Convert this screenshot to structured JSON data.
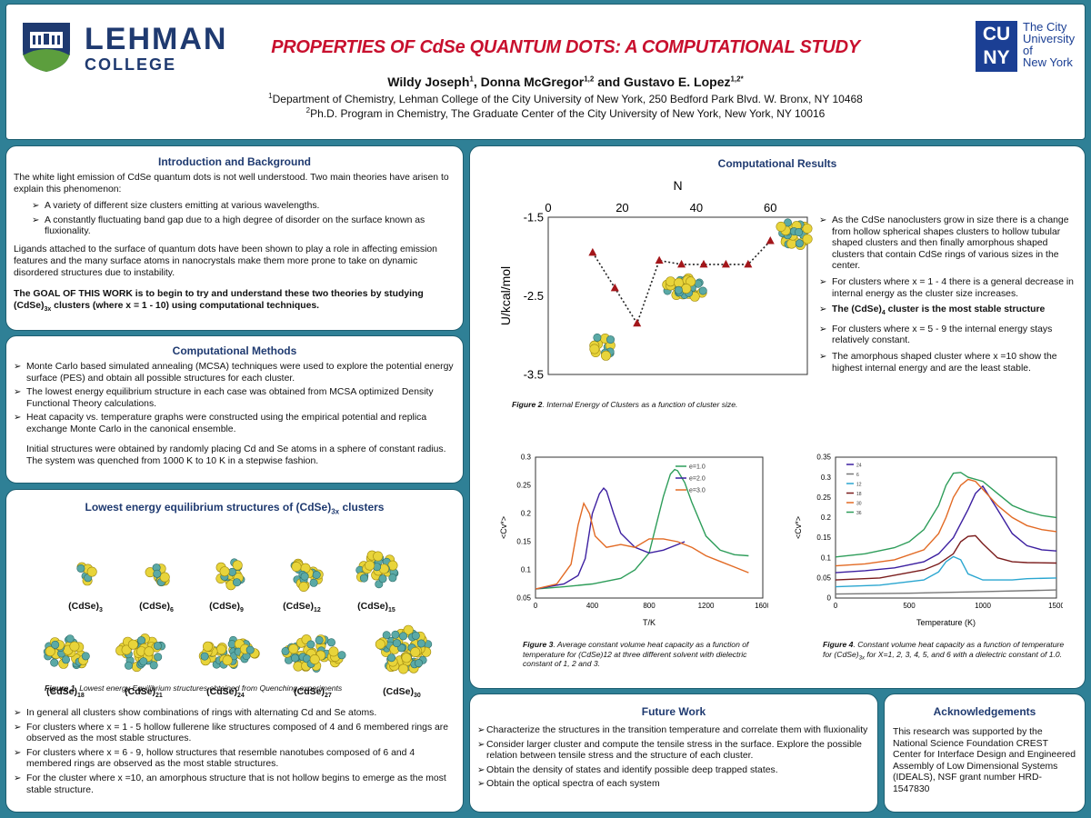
{
  "header": {
    "logo_left": {
      "name": "LEHMAN",
      "sub": "COLLEGE"
    },
    "title": "PROPERTIES OF CdSe QUANTUM DOTS: A COMPUTATIONAL STUDY",
    "authors": [
      {
        "name": "Wildy Joseph",
        "sup": "1"
      },
      {
        "name": "Donna McGregor",
        "sup": "1,2"
      },
      {
        "name": "Gustavo E. Lopez",
        "sup": "1,2*"
      }
    ],
    "aff1_sup": "1",
    "aff1": "Department of Chemistry, Lehman College of the City University of New York, 250 Bedford Park Blvd. W. Bronx, NY 10468",
    "aff2_sup": "2",
    "aff2": "Ph.D. Program in Chemistry, The Graduate Center of the City University of New York, New York, NY 10016",
    "logo_right": {
      "mark_top": "CU",
      "mark_bottom": "NY",
      "line1": "The City",
      "line2": "University",
      "line3": "of",
      "line4": "New York"
    }
  },
  "intro": {
    "heading": "Introduction and Background",
    "p1": "The white light emission of CdSe quantum dots is not well understood. Two main theories have arisen to explain this phenomenon:",
    "bullets": [
      "A variety of different size clusters emitting at various wavelengths.",
      "A constantly fluctuating band gap due to a high degree of disorder on the surface known as fluxionality."
    ],
    "p2": "Ligands attached to the surface of quantum dots have been shown to play a role in affecting emission features and the many surface atoms in nanocrystals make them more prone to take on dynamic disordered structures due to instability.",
    "goal_a": "The GOAL OF THIS WORK is to begin to try and understand these two theories by studying (CdSe)",
    "goal_sub": "3x",
    "goal_b": " clusters (where x = 1 - 10) using computational techniques."
  },
  "methods": {
    "heading": "Computational Methods",
    "bullets": [
      "Monte Carlo based simulated annealing (MCSA) techniques were used to explore the potential energy surface (PES) and obtain all possible structures for each cluster.",
      "The lowest energy equilibrium structure in each case was obtained from MCSA optimized Density Functional Theory calculations.",
      "Heat capacity vs. temperature graphs were constructed using the empirical potential and replica exchange Monte Carlo in the canonical ensemble."
    ],
    "p": "Initial structures were obtained by randomly placing Cd and Se atoms in a sphere of constant radius. The system was quenched from 1000 K to 10 K in a stepwise fashion."
  },
  "structures": {
    "heading_a": "Lowest energy equilibrium structures of  (CdSe)",
    "heading_sub": "3x",
    "heading_b": " clusters",
    "labels": [
      {
        "base": "(CdSe)",
        "sub": "3"
      },
      {
        "base": "(CdSe)",
        "sub": "6"
      },
      {
        "base": "(CdSe)",
        "sub": "9"
      },
      {
        "base": "(CdSe)",
        "sub": "12"
      },
      {
        "base": "(CdSe)",
        "sub": "15"
      },
      {
        "base": "(CdSe)",
        "sub": "18"
      },
      {
        "base": "(CdSe)",
        "sub": "21"
      },
      {
        "base": "(CdSe)",
        "sub": "24"
      },
      {
        "base": "(CdSe)",
        "sub": "27"
      },
      {
        "base": "(CdSe)",
        "sub": "30"
      }
    ],
    "caption_bold": "Figure 1",
    "caption": ". Lowest energy Equilibrium structures obtained from Quenching experiments",
    "bullets": [
      "In general all clusters show combinations of rings with alternating Cd and Se atoms.",
      "For clusters where x = 1 - 5 hollow fullerene like structures composed of 4 and 6 membered rings are observed as the most stable structures.",
      "For clusters where x = 6 - 9, hollow structures that resemble nanotubes composed of 6 and 4 membered rings are observed as the most stable structures.",
      "For the cluster where x =10, an amorphous structure that is not hollow begins to emerge as the most stable structure."
    ]
  },
  "results": {
    "heading": "Computational Results",
    "fig2_caption_bold": "Figure 2",
    "fig2_caption": ". Internal Energy of Clusters as a function of cluster size.",
    "bullets": [
      "As the CdSe nanoclusters grow in size there is a change from  hollow spherical shapes clusters to hollow tubular shaped clusters and then finally amorphous shaped clusters that contain CdSe rings of various sizes in the center.",
      "For clusters where x = 1 - 4 there is a general decrease in internal energy as the cluster size increases.",
      "For clusters where x = 5 - 9 the internal energy stays relatively constant.",
      "The amorphous shaped cluster where x =10 show the highest internal energy and are the least stable."
    ],
    "bold_a": "The (CdSe)",
    "bold_sub": "4",
    "bold_b": " cluster is the most stable structure",
    "fig3_caption_bold": "Figure 3",
    "fig3_caption": ". Average constant volume heat capacity as a function of temperature for (CdSe)12 at three different solvent with dielectric constant of 1, 2 and 3.",
    "fig4_caption_bold": "Figure 4",
    "fig4_caption_a": ". Constant volume heat capacity as a function of temperature for (CdSe)",
    "fig4_caption_sub": "3x",
    "fig4_caption_b": " for X=1, 2, 3, 4, 5, and 6 with a dielectric constant of 1.0."
  },
  "future": {
    "heading": "Future Work",
    "bullets": [
      "Characterize the structures in the transition temperature and correlate them with fluxionality",
      "Consider larger cluster and compute the tensile stress in the surface.  Explore the possible relation between tensile stress and the structure of each cluster.",
      "Obtain the density of states and identify possible deep trapped states.",
      "Obtain the optical spectra of each system"
    ]
  },
  "ack": {
    "heading": "Acknowledgements",
    "text": "This research was supported by the National Science Foundation CREST Center for Interface Design and Engineered Assembly of Low Dimensional Systems (IDEALS), NSF grant number HRD-1547830"
  },
  "colors": {
    "accent": "#1f3a70",
    "title_red": "#c8102e",
    "background": "#2f8096",
    "lehman_blue": "#1f3a70",
    "lehman_green": "#5c9e3d",
    "cuny_blue": "#1b3f94",
    "marker": "#a3161a"
  },
  "chart_data": [
    {
      "type": "scatter",
      "xlabel": "N",
      "ylabel": "U/kcal/mol",
      "xlim": [
        0,
        70
      ],
      "ylim": [
        -3.5,
        -1.5
      ],
      "x_ticks": [
        "0",
        "20",
        "40",
        "60"
      ],
      "y_ticks": [
        "-1.5",
        "-2.5",
        "-3.5"
      ],
      "x": [
        12,
        18,
        24,
        30,
        36,
        42,
        48,
        54,
        60
      ],
      "y": [
        -1.95,
        -2.4,
        -2.85,
        -2.05,
        -2.1,
        -2.1,
        -2.1,
        -2.1,
        -1.8
      ],
      "line": "dotted",
      "marker": "triangle"
    },
    {
      "type": "line",
      "xlabel": "T/K",
      "ylabel": "<Cv*>",
      "xlim": [
        0,
        1600
      ],
      "ylim": [
        0.05,
        0.3
      ],
      "x_ticks": [
        "0",
        "400",
        "800",
        "1200",
        "1600"
      ],
      "y_ticks": [
        "0.05",
        "0.1",
        "0.15",
        "0.2",
        "0.25",
        "0.3"
      ],
      "legend_position": "top-right",
      "series": [
        {
          "name": "e=1.0",
          "color": "#2e9d5a",
          "x": [
            0,
            200,
            400,
            600,
            700,
            800,
            850,
            900,
            950,
            980,
            1000,
            1050,
            1100,
            1200,
            1300,
            1400,
            1500
          ],
          "y": [
            0.066,
            0.07,
            0.075,
            0.085,
            0.1,
            0.13,
            0.18,
            0.23,
            0.27,
            0.278,
            0.276,
            0.255,
            0.22,
            0.16,
            0.135,
            0.127,
            0.125
          ]
        },
        {
          "name": "e=2.0",
          "color": "#3c1fa0",
          "x": [
            0,
            200,
            300,
            350,
            400,
            450,
            480,
            500,
            550,
            600,
            700,
            800,
            900,
            1000,
            1050
          ],
          "y": [
            0.066,
            0.075,
            0.09,
            0.12,
            0.2,
            0.235,
            0.245,
            0.24,
            0.2,
            0.165,
            0.14,
            0.13,
            0.135,
            0.145,
            0.15
          ]
        },
        {
          "name": "e=3.0",
          "color": "#e26a24",
          "x": [
            0,
            150,
            250,
            300,
            340,
            380,
            420,
            500,
            600,
            700,
            800,
            900,
            1000,
            1100,
            1200,
            1300,
            1400,
            1500
          ],
          "y": [
            0.066,
            0.075,
            0.11,
            0.18,
            0.218,
            0.2,
            0.16,
            0.14,
            0.145,
            0.14,
            0.155,
            0.155,
            0.15,
            0.14,
            0.125,
            0.115,
            0.105,
            0.095
          ]
        }
      ]
    },
    {
      "type": "line",
      "xlabel": "Temperature (K)",
      "ylabel": "<Cv*>",
      "xlim": [
        0,
        1500
      ],
      "ylim": [
        0,
        0.35
      ],
      "x_ticks": [
        "0",
        "500",
        "1000",
        "1500"
      ],
      "y_ticks": [
        "0",
        "0.05",
        "0.1",
        "0.15",
        "0.2",
        "0.25",
        "0.3",
        "0.35"
      ],
      "legend_position": "top-left",
      "series": [
        {
          "name": "24",
          "color": "#3c1fa0",
          "x": [
            0,
            200,
            400,
            600,
            700,
            800,
            900,
            950,
            1000,
            1100,
            1200,
            1300,
            1400,
            1500
          ],
          "y": [
            0.063,
            0.068,
            0.075,
            0.09,
            0.11,
            0.15,
            0.22,
            0.26,
            0.278,
            0.22,
            0.16,
            0.13,
            0.12,
            0.117
          ]
        },
        {
          "name": "6",
          "color": "#777777",
          "x": [
            0,
            500,
            1000,
            1500
          ],
          "y": [
            0.01,
            0.012,
            0.016,
            0.02
          ]
        },
        {
          "name": "12",
          "color": "#2aa6d0",
          "x": [
            0,
            300,
            600,
            700,
            750,
            800,
            850,
            900,
            1000,
            1100,
            1200,
            1300,
            1500
          ],
          "y": [
            0.028,
            0.032,
            0.045,
            0.065,
            0.09,
            0.103,
            0.095,
            0.06,
            0.045,
            0.045,
            0.045,
            0.048,
            0.05
          ]
        },
        {
          "name": "18",
          "color": "#7a1c1c",
          "x": [
            0,
            300,
            600,
            700,
            800,
            850,
            900,
            950,
            1000,
            1100,
            1200,
            1300,
            1500
          ],
          "y": [
            0.045,
            0.05,
            0.07,
            0.085,
            0.11,
            0.14,
            0.153,
            0.155,
            0.135,
            0.1,
            0.09,
            0.088,
            0.087
          ]
        },
        {
          "name": "30",
          "color": "#e26a24",
          "x": [
            0,
            200,
            400,
            600,
            700,
            750,
            800,
            850,
            900,
            950,
            1000,
            1100,
            1200,
            1300,
            1400,
            1500
          ],
          "y": [
            0.08,
            0.085,
            0.095,
            0.12,
            0.16,
            0.2,
            0.25,
            0.28,
            0.295,
            0.29,
            0.27,
            0.23,
            0.2,
            0.18,
            0.17,
            0.165
          ]
        },
        {
          "name": "36",
          "color": "#2e9d5a",
          "x": [
            0,
            200,
            400,
            500,
            600,
            700,
            750,
            800,
            850,
            900,
            1000,
            1100,
            1200,
            1300,
            1400,
            1500
          ],
          "y": [
            0.102,
            0.11,
            0.125,
            0.14,
            0.17,
            0.23,
            0.28,
            0.31,
            0.312,
            0.3,
            0.29,
            0.26,
            0.23,
            0.215,
            0.205,
            0.2
          ]
        }
      ]
    }
  ]
}
